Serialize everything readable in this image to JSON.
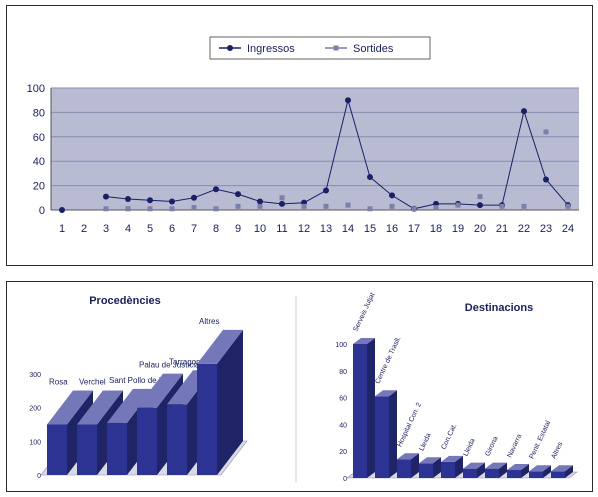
{
  "colors": {
    "series1": "#1b1f66",
    "series2": "#7c7fa6",
    "plot_bg": "#b9bbd3",
    "bar": "#2d3392",
    "bar_light": "#7478b8",
    "bar_side": "#20246f"
  },
  "chart_data": [
    {
      "type": "line",
      "legend_position": "top",
      "grid": true,
      "x": [
        "1",
        "2",
        "3",
        "4",
        "5",
        "6",
        "7",
        "8",
        "9",
        "10",
        "11",
        "12",
        "13",
        "14",
        "15",
        "16",
        "17",
        "18",
        "19",
        "20",
        "21",
        "22",
        "23",
        "24"
      ],
      "ylim": [
        0,
        100
      ],
      "yticks": [
        "0",
        "20",
        "40",
        "60",
        "80",
        "100"
      ],
      "series": [
        {
          "name": "Ingressos",
          "values": [
            0,
            null,
            11,
            9,
            8,
            7,
            10,
            17,
            13,
            7,
            5,
            6,
            16,
            90,
            27,
            12,
            1,
            5,
            5,
            4,
            4,
            81,
            25,
            4
          ]
        },
        {
          "name": "Sortides",
          "values": [
            null,
            null,
            1,
            1,
            1,
            1,
            2,
            1,
            3,
            3,
            10,
            3,
            3,
            4,
            1,
            3,
            1,
            2,
            4,
            11,
            3,
            3,
            64,
            3
          ]
        }
      ]
    },
    {
      "type": "bar",
      "title": "Procedències",
      "yticks": [
        "0",
        "100",
        "200",
        "300"
      ],
      "categories": [
        "Rosa",
        "Verchel",
        "Sant Pollo de Ll",
        "Palau de Justicia",
        "Tarragona",
        "Altres"
      ],
      "values": [
        150,
        150,
        155,
        200,
        210,
        330
      ]
    },
    {
      "type": "bar",
      "title": "Destinacions",
      "yticks": [
        "0",
        "20",
        "40",
        "60",
        "80",
        "100"
      ],
      "categories": [
        "Serveis Jutjat",
        "Centre de Trasll.",
        "Hospital Con. 2",
        "Lleida",
        "Con.Cat.",
        "Lleida",
        "Girona",
        "Navarra",
        "Penit. Estatal",
        "Altres"
      ],
      "values": [
        100,
        61,
        14,
        11,
        12,
        7,
        7,
        6,
        5,
        5
      ]
    }
  ]
}
